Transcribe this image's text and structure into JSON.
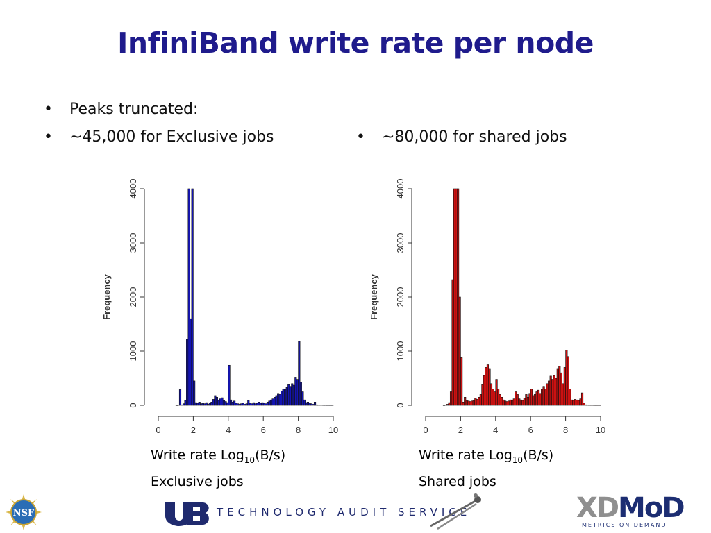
{
  "title": "InfiniBand write rate per node",
  "bullets": {
    "left": [
      "Peaks truncated:",
      "~45,000 for Exclusive jobs"
    ],
    "right": [
      "~80,000 for shared jobs"
    ]
  },
  "captions": {
    "left": {
      "line1_pre": "Write rate Log",
      "line1_sub": "10",
      "line1_post": "(B/s)",
      "line2": "Exclusive jobs"
    },
    "right": {
      "line1_pre": "Write rate Log",
      "line1_sub": "10",
      "line1_post": "(B/s)",
      "line2": "Shared jobs"
    }
  },
  "footer": {
    "nsf_logo": "NSF",
    "ub_logo": "UB",
    "tas_text": "TECHNOLOGY AUDIT SERVICE",
    "xdmod_xd": "XD",
    "xdmod_mod": "MoD",
    "xdmod_tagline": "METRICS ON DEMAND"
  },
  "chart_data": [
    {
      "type": "bar",
      "name": "exclusive",
      "color": "#1414b4",
      "ylabel": "Frequency",
      "xlim": [
        0,
        10
      ],
      "ylim": [
        0,
        4000
      ],
      "xticks": [
        0,
        2,
        4,
        6,
        8,
        10
      ],
      "yticks": [
        0,
        1000,
        2000,
        3000,
        4000
      ],
      "bin_width": 0.1,
      "bins": [
        {
          "x0": 1.0,
          "v": 0
        },
        {
          "x0": 1.1,
          "v": 5
        },
        {
          "x0": 1.2,
          "v": 290
        },
        {
          "x0": 1.3,
          "v": 10
        },
        {
          "x0": 1.4,
          "v": 30
        },
        {
          "x0": 1.5,
          "v": 90
        },
        {
          "x0": 1.6,
          "v": 1220
        },
        {
          "x0": 1.7,
          "v": 4000
        },
        {
          "x0": 1.8,
          "v": 1600
        },
        {
          "x0": 1.9,
          "v": 4000
        },
        {
          "x0": 2.0,
          "v": 450
        },
        {
          "x0": 2.1,
          "v": 50
        },
        {
          "x0": 2.2,
          "v": 40
        },
        {
          "x0": 2.3,
          "v": 60
        },
        {
          "x0": 2.4,
          "v": 30
        },
        {
          "x0": 2.5,
          "v": 40
        },
        {
          "x0": 2.6,
          "v": 30
        },
        {
          "x0": 2.7,
          "v": 50
        },
        {
          "x0": 2.8,
          "v": 20
        },
        {
          "x0": 2.9,
          "v": 40
        },
        {
          "x0": 3.0,
          "v": 60
        },
        {
          "x0": 3.1,
          "v": 110
        },
        {
          "x0": 3.2,
          "v": 180
        },
        {
          "x0": 3.3,
          "v": 150
        },
        {
          "x0": 3.4,
          "v": 90
        },
        {
          "x0": 3.5,
          "v": 120
        },
        {
          "x0": 3.6,
          "v": 140
        },
        {
          "x0": 3.7,
          "v": 90
        },
        {
          "x0": 3.8,
          "v": 70
        },
        {
          "x0": 3.9,
          "v": 50
        },
        {
          "x0": 4.0,
          "v": 740
        },
        {
          "x0": 4.1,
          "v": 100
        },
        {
          "x0": 4.2,
          "v": 60
        },
        {
          "x0": 4.3,
          "v": 80
        },
        {
          "x0": 4.4,
          "v": 40
        },
        {
          "x0": 4.5,
          "v": 30
        },
        {
          "x0": 4.6,
          "v": 20
        },
        {
          "x0": 4.7,
          "v": 30
        },
        {
          "x0": 4.8,
          "v": 40
        },
        {
          "x0": 4.9,
          "v": 20
        },
        {
          "x0": 5.0,
          "v": 30
        },
        {
          "x0": 5.1,
          "v": 90
        },
        {
          "x0": 5.2,
          "v": 40
        },
        {
          "x0": 5.3,
          "v": 30
        },
        {
          "x0": 5.4,
          "v": 50
        },
        {
          "x0": 5.5,
          "v": 30
        },
        {
          "x0": 5.6,
          "v": 40
        },
        {
          "x0": 5.7,
          "v": 60
        },
        {
          "x0": 5.8,
          "v": 40
        },
        {
          "x0": 5.9,
          "v": 50
        },
        {
          "x0": 6.0,
          "v": 40
        },
        {
          "x0": 6.1,
          "v": 30
        },
        {
          "x0": 6.2,
          "v": 60
        },
        {
          "x0": 6.3,
          "v": 80
        },
        {
          "x0": 6.4,
          "v": 100
        },
        {
          "x0": 6.5,
          "v": 120
        },
        {
          "x0": 6.6,
          "v": 150
        },
        {
          "x0": 6.7,
          "v": 180
        },
        {
          "x0": 6.8,
          "v": 220
        },
        {
          "x0": 6.9,
          "v": 200
        },
        {
          "x0": 7.0,
          "v": 260
        },
        {
          "x0": 7.1,
          "v": 300
        },
        {
          "x0": 7.2,
          "v": 290
        },
        {
          "x0": 7.3,
          "v": 330
        },
        {
          "x0": 7.4,
          "v": 380
        },
        {
          "x0": 7.5,
          "v": 350
        },
        {
          "x0": 7.6,
          "v": 400
        },
        {
          "x0": 7.7,
          "v": 370
        },
        {
          "x0": 7.8,
          "v": 520
        },
        {
          "x0": 7.9,
          "v": 480
        },
        {
          "x0": 8.0,
          "v": 1180
        },
        {
          "x0": 8.1,
          "v": 430
        },
        {
          "x0": 8.2,
          "v": 250
        },
        {
          "x0": 8.3,
          "v": 100
        },
        {
          "x0": 8.4,
          "v": 50
        },
        {
          "x0": 8.5,
          "v": 60
        },
        {
          "x0": 8.6,
          "v": 40
        },
        {
          "x0": 8.7,
          "v": 30
        },
        {
          "x0": 8.8,
          "v": 20
        },
        {
          "x0": 8.9,
          "v": 60
        },
        {
          "x0": 9.0,
          "v": 10
        },
        {
          "x0": 9.1,
          "v": 5
        },
        {
          "x0": 9.2,
          "v": 5
        },
        {
          "x0": 9.3,
          "v": 5
        },
        {
          "x0": 9.4,
          "v": 3
        },
        {
          "x0": 9.5,
          "v": 3
        },
        {
          "x0": 9.6,
          "v": 2
        },
        {
          "x0": 9.7,
          "v": 2
        },
        {
          "x0": 9.8,
          "v": 2
        },
        {
          "x0": 9.9,
          "v": 2
        }
      ]
    },
    {
      "type": "bar",
      "name": "shared",
      "color": "#cc1111",
      "ylabel": "Frequency",
      "xlim": [
        0,
        10
      ],
      "ylim": [
        0,
        4000
      ],
      "xticks": [
        0,
        2,
        4,
        6,
        8,
        10
      ],
      "yticks": [
        0,
        1000,
        2000,
        3000,
        4000
      ],
      "bin_width": 0.1,
      "bins": [
        {
          "x0": 1.0,
          "v": 0
        },
        {
          "x0": 1.1,
          "v": 5
        },
        {
          "x0": 1.2,
          "v": 20
        },
        {
          "x0": 1.3,
          "v": 50
        },
        {
          "x0": 1.4,
          "v": 250
        },
        {
          "x0": 1.5,
          "v": 2320
        },
        {
          "x0": 1.6,
          "v": 4000
        },
        {
          "x0": 1.7,
          "v": 4000
        },
        {
          "x0": 1.8,
          "v": 4000
        },
        {
          "x0": 1.9,
          "v": 2000
        },
        {
          "x0": 2.0,
          "v": 880
        },
        {
          "x0": 2.1,
          "v": 60
        },
        {
          "x0": 2.2,
          "v": 150
        },
        {
          "x0": 2.3,
          "v": 90
        },
        {
          "x0": 2.4,
          "v": 80
        },
        {
          "x0": 2.5,
          "v": 70
        },
        {
          "x0": 2.6,
          "v": 80
        },
        {
          "x0": 2.7,
          "v": 90
        },
        {
          "x0": 2.8,
          "v": 130
        },
        {
          "x0": 2.9,
          "v": 110
        },
        {
          "x0": 3.0,
          "v": 150
        },
        {
          "x0": 3.1,
          "v": 200
        },
        {
          "x0": 3.2,
          "v": 380
        },
        {
          "x0": 3.3,
          "v": 550
        },
        {
          "x0": 3.4,
          "v": 700
        },
        {
          "x0": 3.5,
          "v": 750
        },
        {
          "x0": 3.6,
          "v": 680
        },
        {
          "x0": 3.7,
          "v": 400
        },
        {
          "x0": 3.8,
          "v": 300
        },
        {
          "x0": 3.9,
          "v": 250
        },
        {
          "x0": 4.0,
          "v": 480
        },
        {
          "x0": 4.1,
          "v": 300
        },
        {
          "x0": 4.2,
          "v": 200
        },
        {
          "x0": 4.3,
          "v": 150
        },
        {
          "x0": 4.4,
          "v": 100
        },
        {
          "x0": 4.5,
          "v": 80
        },
        {
          "x0": 4.6,
          "v": 70
        },
        {
          "x0": 4.7,
          "v": 80
        },
        {
          "x0": 4.8,
          "v": 100
        },
        {
          "x0": 4.9,
          "v": 90
        },
        {
          "x0": 5.0,
          "v": 120
        },
        {
          "x0": 5.1,
          "v": 250
        },
        {
          "x0": 5.2,
          "v": 200
        },
        {
          "x0": 5.3,
          "v": 120
        },
        {
          "x0": 5.4,
          "v": 100
        },
        {
          "x0": 5.5,
          "v": 90
        },
        {
          "x0": 5.6,
          "v": 130
        },
        {
          "x0": 5.7,
          "v": 200
        },
        {
          "x0": 5.8,
          "v": 150
        },
        {
          "x0": 5.9,
          "v": 220
        },
        {
          "x0": 6.0,
          "v": 300
        },
        {
          "x0": 6.1,
          "v": 180
        },
        {
          "x0": 6.2,
          "v": 200
        },
        {
          "x0": 6.3,
          "v": 250
        },
        {
          "x0": 6.4,
          "v": 280
        },
        {
          "x0": 6.5,
          "v": 220
        },
        {
          "x0": 6.6,
          "v": 300
        },
        {
          "x0": 6.7,
          "v": 350
        },
        {
          "x0": 6.8,
          "v": 300
        },
        {
          "x0": 6.9,
          "v": 400
        },
        {
          "x0": 7.0,
          "v": 450
        },
        {
          "x0": 7.1,
          "v": 540
        },
        {
          "x0": 7.2,
          "v": 480
        },
        {
          "x0": 7.3,
          "v": 550
        },
        {
          "x0": 7.4,
          "v": 500
        },
        {
          "x0": 7.5,
          "v": 680
        },
        {
          "x0": 7.6,
          "v": 720
        },
        {
          "x0": 7.7,
          "v": 600
        },
        {
          "x0": 7.8,
          "v": 400
        },
        {
          "x0": 7.9,
          "v": 700
        },
        {
          "x0": 8.0,
          "v": 1020
        },
        {
          "x0": 8.1,
          "v": 900
        },
        {
          "x0": 8.2,
          "v": 300
        },
        {
          "x0": 8.3,
          "v": 100
        },
        {
          "x0": 8.4,
          "v": 90
        },
        {
          "x0": 8.5,
          "v": 110
        },
        {
          "x0": 8.6,
          "v": 100
        },
        {
          "x0": 8.7,
          "v": 90
        },
        {
          "x0": 8.8,
          "v": 120
        },
        {
          "x0": 8.9,
          "v": 230
        },
        {
          "x0": 9.0,
          "v": 40
        },
        {
          "x0": 9.1,
          "v": 10
        },
        {
          "x0": 9.2,
          "v": 5
        },
        {
          "x0": 9.3,
          "v": 5
        },
        {
          "x0": 9.4,
          "v": 3
        },
        {
          "x0": 9.5,
          "v": 3
        },
        {
          "x0": 9.6,
          "v": 2
        },
        {
          "x0": 9.7,
          "v": 2
        },
        {
          "x0": 9.8,
          "v": 2
        },
        {
          "x0": 9.9,
          "v": 2
        }
      ]
    }
  ]
}
